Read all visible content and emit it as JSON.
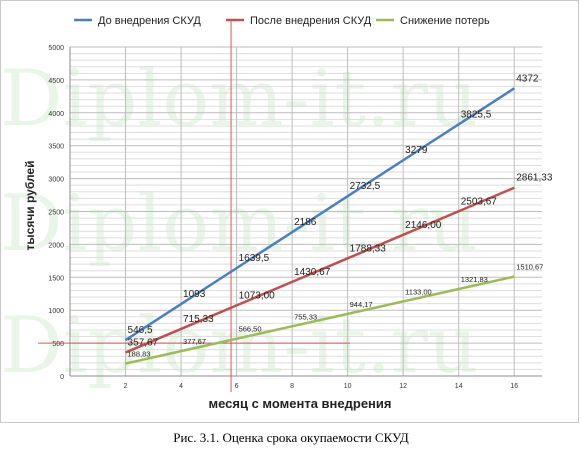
{
  "caption": "Рис. 3.1. Оценка срока окупаемости СКУД",
  "watermark": "Diplom-it.ru",
  "chart_data": {
    "type": "line",
    "xlabel": "месяц с момента внедрения",
    "ylabel": "тысячи рублей",
    "xlim": [
      0,
      17
    ],
    "ylim": [
      0,
      5000
    ],
    "x_ticks": [
      2,
      4,
      6,
      8,
      10,
      12,
      14,
      16
    ],
    "y_ticks": [
      0,
      500,
      1000,
      1500,
      2000,
      2500,
      3000,
      3500,
      4000,
      4500,
      5000
    ],
    "grid": true,
    "legend_position": "top",
    "series": [
      {
        "name": "До внедрения СКУД",
        "color": "#4a7fc1",
        "x": [
          2,
          4,
          6,
          8,
          10,
          12,
          14,
          16
        ],
        "values": [
          546.5,
          1093,
          1639.5,
          2186,
          2732.5,
          3279,
          3825.5,
          4372
        ],
        "labels": [
          "546,5",
          "1093",
          "1639,5",
          "2186",
          "2732,5",
          "3279",
          "3825,5",
          "4372"
        ]
      },
      {
        "name": "После внедрения СКУД",
        "color": "#c0504d",
        "x": [
          2,
          4,
          6,
          8,
          10,
          12,
          14,
          16
        ],
        "values": [
          357.67,
          715.33,
          1073.0,
          1430.67,
          1788.33,
          2146.0,
          2503.67,
          2861.33
        ],
        "labels": [
          "357,67",
          "715,33",
          "1073,00",
          "1430,67",
          "1788,33",
          "2146,00",
          "2503,67",
          "2861,33"
        ]
      },
      {
        "name": "Снижение потерь",
        "color": "#9bbb59",
        "x": [
          2,
          4,
          6,
          8,
          10,
          12,
          14,
          16
        ],
        "values": [
          188.83,
          377.67,
          566.5,
          755.33,
          944.17,
          1133.0,
          1321.83,
          1510.67
        ],
        "labels": [
          "188,83",
          "377,67",
          "566,50",
          "755,33",
          "944,17",
          "1133,00",
          "1321,83",
          "1510,67"
        ]
      }
    ],
    "reference_lines": {
      "vertical_x": 5.8,
      "horizontal_y": 500,
      "color": "#e05555"
    }
  }
}
